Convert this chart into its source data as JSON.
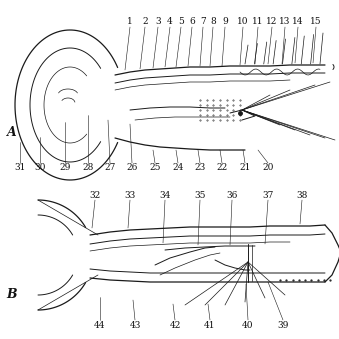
{
  "background_color": "#f5f5f5",
  "fig_width": 3.39,
  "fig_height": 3.39,
  "dpi": 100,
  "line_color": [
    30,
    30,
    30
  ],
  "panel_A": {
    "label": "A",
    "top_labels": [
      "1",
      "2",
      "3",
      "4",
      "5",
      "6",
      "7",
      "8",
      "9",
      "10",
      "11",
      "12",
      "13",
      "14",
      "15"
    ],
    "bottom_labels": [
      "31",
      "30",
      "29",
      "28",
      "27",
      "26",
      "25",
      "24",
      "23",
      "22",
      "21",
      "20"
    ]
  },
  "panel_B": {
    "label": "B",
    "top_labels": [
      "32",
      "33",
      "34",
      "35",
      "36",
      "37",
      "38"
    ],
    "bottom_labels": [
      "44",
      "43",
      "42",
      "41",
      "40",
      "39"
    ]
  }
}
